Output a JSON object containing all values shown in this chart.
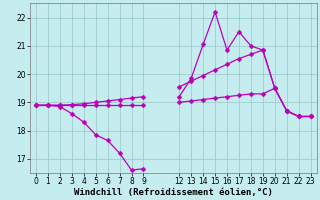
{
  "bg_color": "#c5edf0",
  "grid_color": "#a0cccc",
  "line_color": "#bb00bb",
  "xlim_min": -0.5,
  "xlim_max": 23.5,
  "ylim_min": 16.5,
  "ylim_max": 22.5,
  "yticks": [
    17,
    18,
    19,
    20,
    21,
    22
  ],
  "xticks": [
    0,
    1,
    2,
    3,
    4,
    5,
    6,
    7,
    8,
    9,
    12,
    13,
    14,
    15,
    16,
    17,
    18,
    19,
    20,
    21,
    22,
    23
  ],
  "xlabel": "Windchill (Refroidissement éolien,°C)",
  "hours_seg1": [
    0,
    1,
    2,
    3,
    4,
    5,
    6,
    7,
    8,
    9
  ],
  "hours_seg2": [
    12,
    13,
    14,
    15,
    16,
    17,
    18,
    19,
    20,
    21,
    22,
    23
  ],
  "line1_seg1": [
    18.9,
    18.9,
    18.85,
    18.6,
    18.3,
    17.85,
    17.65,
    17.2,
    16.6,
    16.65
  ],
  "line1_seg2": [
    19.2,
    19.85,
    21.05,
    22.2,
    20.85,
    21.5,
    21.0,
    20.85,
    19.5,
    18.7,
    18.5,
    18.5
  ],
  "line2_seg1": [
    18.9,
    18.9,
    18.9,
    18.92,
    18.95,
    19.0,
    19.05,
    19.1,
    19.15,
    19.2
  ],
  "line2_seg2": [
    19.55,
    19.75,
    19.95,
    20.15,
    20.35,
    20.55,
    20.7,
    20.85,
    19.5,
    18.7,
    18.5,
    18.5
  ],
  "line3_seg1": [
    18.9,
    18.9,
    18.9,
    18.9,
    18.9,
    18.9,
    18.9,
    18.9,
    18.9,
    18.9
  ],
  "line3_seg2": [
    19.0,
    19.05,
    19.1,
    19.15,
    19.2,
    19.25,
    19.3,
    19.3,
    19.5,
    18.7,
    18.5,
    18.5
  ],
  "markersize": 2.5,
  "linewidth": 0.9,
  "tick_fontsize": 5.5,
  "label_fontsize": 6.5
}
